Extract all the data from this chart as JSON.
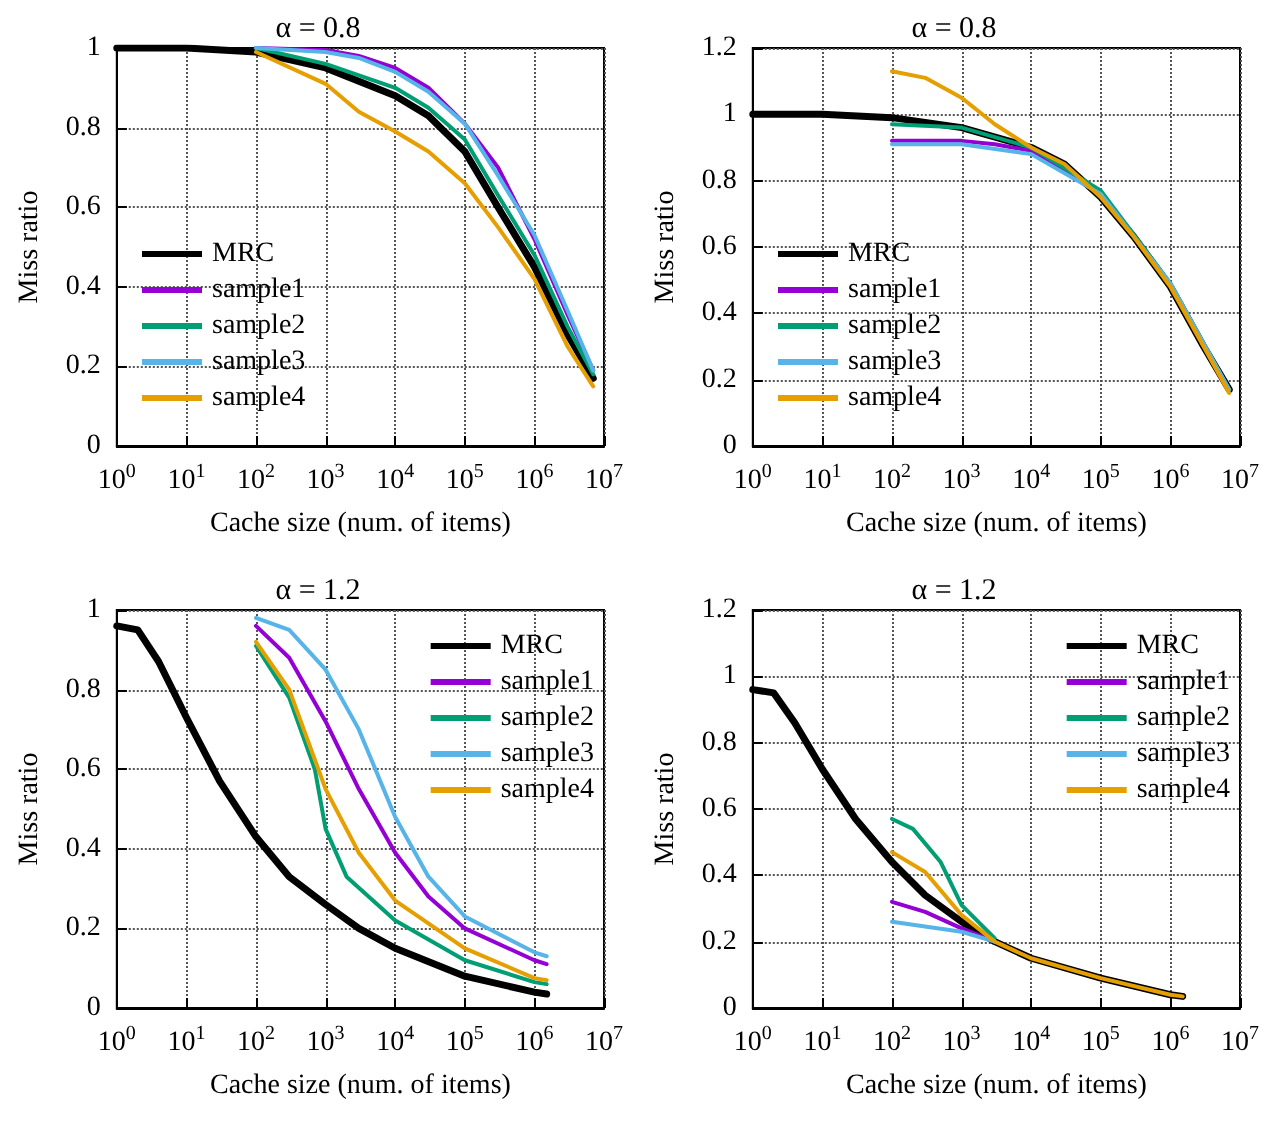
{
  "chart_data": [
    {
      "type": "line",
      "title": "α = 0.8",
      "xlabel": "Cache size (num. of items)",
      "ylabel": "Miss ratio",
      "log": "x",
      "grid": true,
      "legend": "bottom left",
      "marker": "none",
      "line_style": "solid",
      "xlim": [
        1,
        10000000
      ],
      "xticks": [
        {
          "value": 1,
          "label": "10$^{0}$"
        },
        {
          "value": 10,
          "label": "10$^{1}$"
        },
        {
          "value": 100,
          "label": "10$^{2}$"
        },
        {
          "value": 1000,
          "label": "10$^{3}$"
        },
        {
          "value": 10000,
          "label": "10$^{4}$"
        },
        {
          "value": 100000,
          "label": "10$^{5}$"
        },
        {
          "value": 1000000,
          "label": "10$^{6}$"
        },
        {
          "value": 10000000,
          "label": "10$^{7}$"
        }
      ],
      "ylim": [
        0,
        1
      ],
      "yticks": [
        0,
        0.2,
        0.4,
        0.6,
        0.8,
        1
      ],
      "series": [
        {
          "name": "MRC",
          "color": "#000000",
          "x": [
            1,
            10,
            100,
            1000,
            10000,
            30000,
            100000,
            300000,
            1000000,
            3000000,
            7000000
          ],
          "values": [
            1,
            1,
            0.99,
            0.95,
            0.88,
            0.83,
            0.74,
            0.6,
            0.45,
            0.28,
            0.17
          ]
        },
        {
          "name": "sample1",
          "color": "#9400d3",
          "x": [
            100,
            1000,
            3000,
            10000,
            30000,
            100000,
            300000,
            1000000,
            3000000,
            7000000
          ],
          "values": [
            1,
            0.995,
            0.98,
            0.95,
            0.9,
            0.81,
            0.7,
            0.52,
            0.33,
            0.19
          ]
        },
        {
          "name": "sample2",
          "color": "#009e73",
          "x": [
            100,
            1000,
            10000,
            30000,
            100000,
            300000,
            1000000,
            3000000,
            7000000
          ],
          "values": [
            1,
            0.96,
            0.9,
            0.85,
            0.77,
            0.63,
            0.48,
            0.3,
            0.18
          ]
        },
        {
          "name": "sample3",
          "color": "#56b4e9",
          "x": [
            100,
            1000,
            3000,
            10000,
            30000,
            100000,
            300000,
            1000000,
            3000000,
            7000000
          ],
          "values": [
            1,
            0.99,
            0.975,
            0.94,
            0.89,
            0.81,
            0.68,
            0.53,
            0.34,
            0.19
          ]
        },
        {
          "name": "sample4",
          "color": "#e69f00",
          "x": [
            100,
            1000,
            3000,
            10000,
            30000,
            100000,
            300000,
            1000000,
            3000000,
            7000000
          ],
          "values": [
            0.99,
            0.91,
            0.84,
            0.79,
            0.74,
            0.66,
            0.55,
            0.42,
            0.25,
            0.15
          ]
        }
      ]
    },
    {
      "type": "line",
      "title": "α = 0.8",
      "xlabel": "Cache size (num. of items)",
      "ylabel": "Miss ratio",
      "log": "x",
      "grid": true,
      "legend": "bottom left",
      "marker": "none",
      "line_style": "solid",
      "xlim": [
        1,
        10000000
      ],
      "xticks": [
        {
          "value": 1,
          "label": "10$^{0}$"
        },
        {
          "value": 10,
          "label": "10$^{1}$"
        },
        {
          "value": 100,
          "label": "10$^{2}$"
        },
        {
          "value": 1000,
          "label": "10$^{3}$"
        },
        {
          "value": 10000,
          "label": "10$^{4}$"
        },
        {
          "value": 100000,
          "label": "10$^{5}$"
        },
        {
          "value": 1000000,
          "label": "10$^{6}$"
        },
        {
          "value": 10000000,
          "label": "10$^{7}$"
        }
      ],
      "ylim": [
        0,
        1.2
      ],
      "yticks": [
        0,
        0.2,
        0.4,
        0.6,
        0.8,
        1,
        1.2
      ],
      "series": [
        {
          "name": "MRC",
          "color": "#000000",
          "x": [
            1,
            10,
            100,
            1000,
            10000,
            30000,
            100000,
            300000,
            1000000,
            3000000,
            7000000
          ],
          "values": [
            1,
            1,
            0.99,
            0.96,
            0.9,
            0.85,
            0.75,
            0.63,
            0.48,
            0.3,
            0.17
          ]
        },
        {
          "name": "sample1",
          "color": "#9400d3",
          "x": [
            100,
            1000,
            3000,
            10000,
            100000
          ],
          "values": [
            0.92,
            0.92,
            0.91,
            0.89,
            0.76
          ]
        },
        {
          "name": "sample2",
          "color": "#009e73",
          "x": [
            100,
            1000,
            10000,
            100000,
            1000000,
            7000000
          ],
          "values": [
            0.97,
            0.96,
            0.9,
            0.77,
            0.49,
            0.17
          ]
        },
        {
          "name": "sample3",
          "color": "#56b4e9",
          "x": [
            100,
            1000,
            10000,
            100000,
            1000000,
            7000000
          ],
          "values": [
            0.91,
            0.91,
            0.88,
            0.76,
            0.49,
            0.17
          ]
        },
        {
          "name": "sample4",
          "color": "#e69f00",
          "x": [
            100,
            300,
            1000,
            3000,
            10000,
            30000,
            100000,
            300000,
            1000000,
            3000000,
            7000000
          ],
          "values": [
            1.13,
            1.11,
            1.05,
            0.97,
            0.9,
            0.85,
            0.75,
            0.63,
            0.48,
            0.3,
            0.16
          ]
        }
      ]
    },
    {
      "type": "line",
      "title": "α = 1.2",
      "xlabel": "Cache size (num. of items)",
      "ylabel": "Miss ratio",
      "log": "x",
      "grid": true,
      "legend": "top right",
      "marker": "none",
      "line_style": "solid",
      "xlim": [
        1,
        10000000
      ],
      "xticks": [
        {
          "value": 1,
          "label": "10$^{0}$"
        },
        {
          "value": 10,
          "label": "10$^{1}$"
        },
        {
          "value": 100,
          "label": "10$^{2}$"
        },
        {
          "value": 1000,
          "label": "10$^{3}$"
        },
        {
          "value": 10000,
          "label": "10$^{4}$"
        },
        {
          "value": 100000,
          "label": "10$^{5}$"
        },
        {
          "value": 1000000,
          "label": "10$^{6}$"
        },
        {
          "value": 10000000,
          "label": "10$^{7}$"
        }
      ],
      "ylim": [
        0,
        1
      ],
      "yticks": [
        0,
        0.2,
        0.4,
        0.6,
        0.8,
        1
      ],
      "series": [
        {
          "name": "MRC",
          "color": "#000000",
          "x": [
            1,
            2,
            4,
            10,
            30,
            100,
            300,
            1000,
            3000,
            10000,
            100000,
            1000000,
            1500000
          ],
          "values": [
            0.96,
            0.95,
            0.87,
            0.73,
            0.57,
            0.43,
            0.33,
            0.26,
            0.2,
            0.15,
            0.08,
            0.04,
            0.035
          ]
        },
        {
          "name": "sample1",
          "color": "#9400d3",
          "x": [
            100,
            300,
            1000,
            3000,
            10000,
            30000,
            100000,
            1000000,
            1500000
          ],
          "values": [
            0.96,
            0.88,
            0.72,
            0.55,
            0.39,
            0.28,
            0.2,
            0.12,
            0.11
          ]
        },
        {
          "name": "sample2",
          "color": "#009e73",
          "x": [
            100,
            300,
            700,
            1000,
            2000,
            10000,
            100000,
            1000000,
            1500000
          ],
          "values": [
            0.91,
            0.78,
            0.6,
            0.45,
            0.33,
            0.22,
            0.12,
            0.065,
            0.06
          ]
        },
        {
          "name": "sample3",
          "color": "#56b4e9",
          "x": [
            100,
            300,
            1000,
            3000,
            10000,
            30000,
            100000,
            1000000,
            1500000
          ],
          "values": [
            0.98,
            0.95,
            0.85,
            0.7,
            0.48,
            0.33,
            0.23,
            0.14,
            0.13
          ]
        },
        {
          "name": "sample4",
          "color": "#e69f00",
          "x": [
            100,
            300,
            1000,
            3000,
            10000,
            100000,
            1000000,
            1500000
          ],
          "values": [
            0.92,
            0.8,
            0.55,
            0.39,
            0.27,
            0.15,
            0.075,
            0.07
          ]
        }
      ]
    },
    {
      "type": "line",
      "title": "α = 1.2",
      "xlabel": "Cache size (num. of items)",
      "ylabel": "Miss ratio",
      "log": "x",
      "grid": true,
      "legend": "top right",
      "marker": "none",
      "line_style": "solid",
      "xlim": [
        1,
        10000000
      ],
      "xticks": [
        {
          "value": 1,
          "label": "10$^{0}$"
        },
        {
          "value": 10,
          "label": "10$^{1}$"
        },
        {
          "value": 100,
          "label": "10$^{2}$"
        },
        {
          "value": 1000,
          "label": "10$^{3}$"
        },
        {
          "value": 10000,
          "label": "10$^{4}$"
        },
        {
          "value": 100000,
          "label": "10$^{5}$"
        },
        {
          "value": 1000000,
          "label": "10$^{6}$"
        },
        {
          "value": 10000000,
          "label": "10$^{7}$"
        }
      ],
      "ylim": [
        0,
        1.2
      ],
      "yticks": [
        0,
        0.2,
        0.4,
        0.6,
        0.8,
        1,
        1.2
      ],
      "series": [
        {
          "name": "MRC",
          "color": "#000000",
          "x": [
            1,
            2,
            4,
            10,
            30,
            100,
            300,
            1000,
            3000,
            10000,
            100000,
            1000000,
            1500000
          ],
          "values": [
            0.96,
            0.95,
            0.86,
            0.72,
            0.57,
            0.44,
            0.34,
            0.26,
            0.2,
            0.15,
            0.09,
            0.04,
            0.035
          ]
        },
        {
          "name": "sample1",
          "color": "#9400d3",
          "x": [
            100,
            300,
            1000,
            3000
          ],
          "values": [
            0.32,
            0.29,
            0.24,
            0.2
          ]
        },
        {
          "name": "sample2",
          "color": "#009e73",
          "x": [
            100,
            200,
            500,
            1000,
            3000
          ],
          "values": [
            0.57,
            0.54,
            0.44,
            0.31,
            0.21
          ]
        },
        {
          "name": "sample3",
          "color": "#56b4e9",
          "x": [
            100,
            1000,
            3000
          ],
          "values": [
            0.26,
            0.23,
            0.2
          ]
        },
        {
          "name": "sample4",
          "color": "#e69f00",
          "x": [
            100,
            300,
            1000,
            3000,
            10000,
            100000,
            1000000,
            1500000
          ],
          "values": [
            0.47,
            0.41,
            0.28,
            0.2,
            0.15,
            0.09,
            0.04,
            0.035
          ]
        }
      ]
    }
  ]
}
